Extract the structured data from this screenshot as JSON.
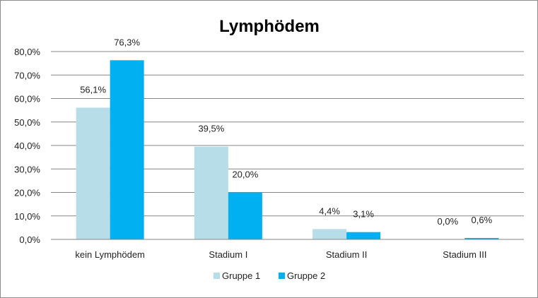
{
  "chart_data": {
    "type": "bar",
    "title": "Lymphödem",
    "categories": [
      "kein Lymphödem",
      "Stadium I",
      "Stadium II",
      "Stadium III"
    ],
    "series": [
      {
        "name": "Gruppe 1",
        "color": "#b7dde8",
        "values": [
          56.1,
          39.5,
          4.4,
          0.0
        ],
        "labels": [
          "56,1%",
          "39,5%",
          "4,4%",
          "0,0%"
        ]
      },
      {
        "name": "Gruppe 2",
        "color": "#00b0f0",
        "values": [
          76.3,
          20.0,
          3.1,
          0.6
        ],
        "labels": [
          "76,3%",
          "20,0%",
          "3,1%",
          "0,6%"
        ]
      }
    ],
    "ylim": [
      0,
      80
    ],
    "yticks": [
      0,
      10,
      20,
      30,
      40,
      50,
      60,
      70,
      80
    ],
    "ytick_labels": [
      "0,0%",
      "10,0%",
      "20,0%",
      "30,0%",
      "40,0%",
      "50,0%",
      "60,0%",
      "70,0%",
      "80,0%"
    ],
    "grid": true,
    "legend_position": "bottom"
  }
}
